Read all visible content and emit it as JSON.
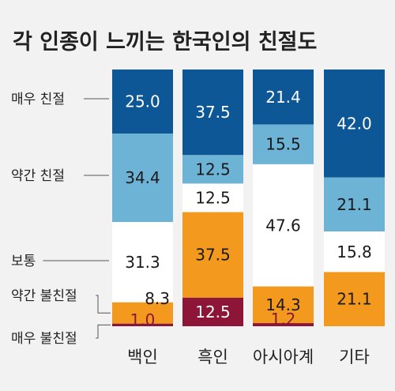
{
  "chart_data": {
    "type": "bar",
    "stacked": true,
    "normalized": true,
    "title": "각 인종이 느끼는 한국인의 친절도",
    "categories": [
      "백인",
      "흑인",
      "아시아계",
      "기타"
    ],
    "series": [
      {
        "name": "매우 친절",
        "color": "#0d5796",
        "label_color": "#ffffff",
        "values": [
          25.0,
          37.5,
          21.4,
          42.0
        ]
      },
      {
        "name": "약간 친절",
        "color": "#6cb3d6",
        "label_color": "#1a1a1a",
        "values": [
          34.4,
          12.5,
          15.5,
          21.1
        ]
      },
      {
        "name": "보통",
        "color": "#ffffff",
        "label_color": "#1a1a1a",
        "values": [
          31.3,
          12.5,
          47.6,
          15.8
        ]
      },
      {
        "name": "약간 불친절",
        "color": "#f39a1e",
        "label_color": "#1a1a1a",
        "values": [
          8.3,
          37.5,
          14.3,
          21.1
        ]
      },
      {
        "name": "매우 불친절",
        "color": "#8c1538",
        "label_color": "#ffffff",
        "values": [
          1.0,
          12.5,
          1.2,
          0.0
        ]
      }
    ],
    "value_labels": [
      [
        "25.0",
        "34.4",
        "31.3",
        "8.3",
        "1.0"
      ],
      [
        "37.5",
        "12.5",
        "12.5",
        "37.5",
        "12.5"
      ],
      [
        "21.4",
        "15.5",
        "47.6",
        "14.3",
        "1.2"
      ],
      [
        "42.0",
        "21.1",
        "15.8",
        "21.1",
        ""
      ]
    ],
    "legend_position": "left",
    "grid": false
  }
}
